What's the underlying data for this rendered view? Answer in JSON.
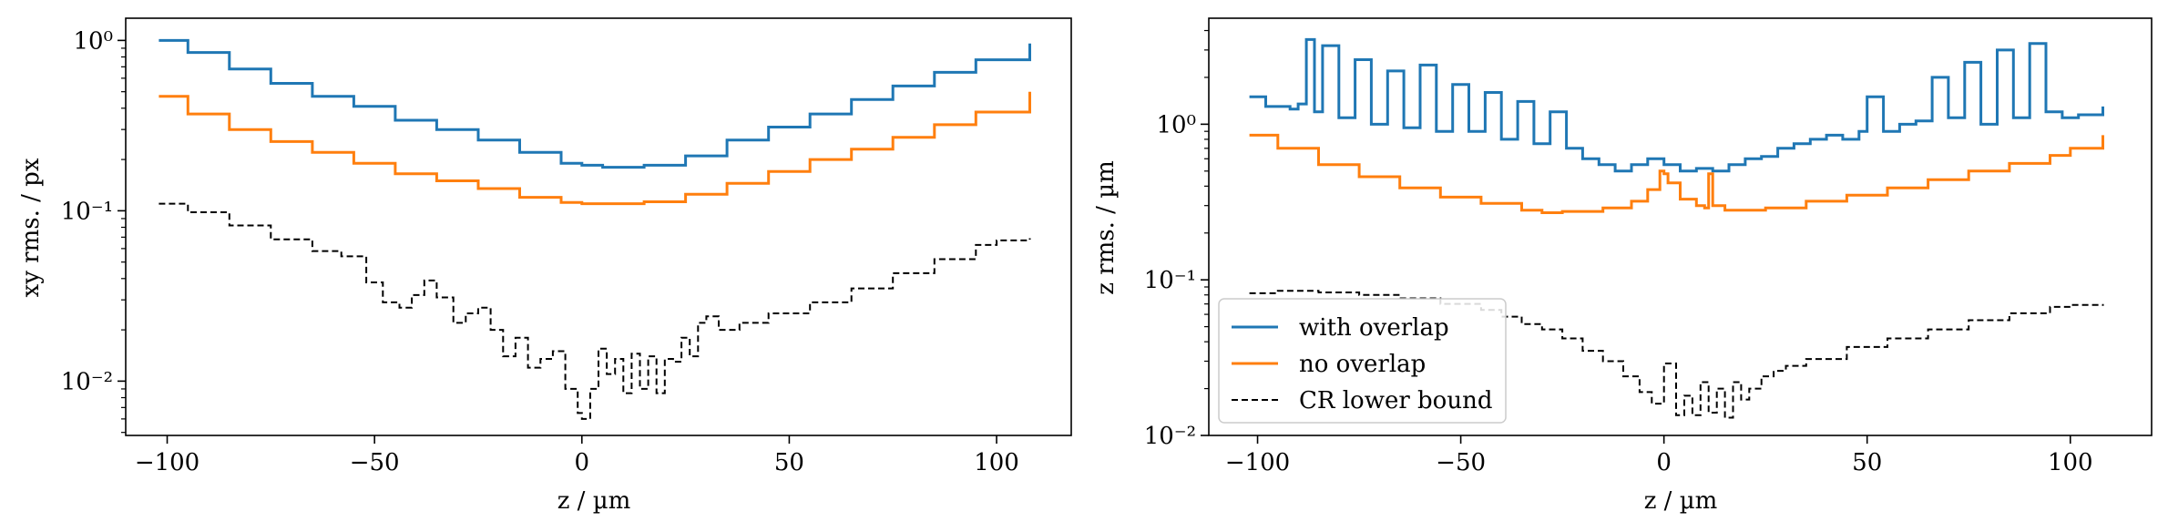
{
  "chart_data": [
    {
      "type": "line",
      "drawstyle": "steps",
      "title": "",
      "xlabel": "z / µm",
      "ylabel": "xy rms. / px",
      "yscale": "log",
      "xlim": [
        -110,
        118
      ],
      "ylim": [
        0.0048,
        1.35
      ],
      "xticks": [
        -100,
        -50,
        0,
        50,
        100
      ],
      "xtick_labels": [
        "−100",
        "−50",
        "0",
        "50",
        "100"
      ],
      "yticks": [
        0.01,
        0.1,
        1
      ],
      "ytick_labels": [
        "10⁻²",
        "10⁻¹",
        "10⁰"
      ],
      "grid": false,
      "series": [
        {
          "color": "#1f77b4",
          "style": "solid",
          "x": [
            -102,
            -95,
            -85,
            -75,
            -65,
            -55,
            -45,
            -35,
            -25,
            -15,
            -5,
            0,
            5,
            15,
            25,
            35,
            45,
            55,
            65,
            75,
            85,
            95,
            108
          ],
          "y": [
            1.0,
            0.85,
            0.68,
            0.56,
            0.47,
            0.41,
            0.34,
            0.3,
            0.26,
            0.22,
            0.19,
            0.185,
            0.18,
            0.185,
            0.21,
            0.26,
            0.31,
            0.37,
            0.45,
            0.54,
            0.65,
            0.77,
            0.96
          ]
        },
        {
          "color": "#ff7f0e",
          "style": "solid",
          "x": [
            -102,
            -95,
            -85,
            -75,
            -65,
            -55,
            -45,
            -35,
            -25,
            -15,
            -5,
            0,
            5,
            15,
            25,
            35,
            45,
            55,
            65,
            75,
            85,
            95,
            108
          ],
          "y": [
            0.47,
            0.37,
            0.3,
            0.255,
            0.22,
            0.19,
            0.165,
            0.15,
            0.135,
            0.12,
            0.112,
            0.11,
            0.11,
            0.113,
            0.125,
            0.145,
            0.17,
            0.2,
            0.23,
            0.27,
            0.32,
            0.38,
            0.5
          ]
        },
        {
          "color": "#000000",
          "style": "dashed",
          "x": [
            -102,
            -95,
            -85,
            -75,
            -65,
            -58,
            -52,
            -48,
            -44,
            -41,
            -38,
            -35,
            -31,
            -28,
            -25,
            -22,
            -19,
            -16,
            -13,
            -10,
            -7,
            -4,
            -1,
            0,
            2,
            4,
            6,
            8,
            10,
            12,
            14,
            16,
            18,
            20,
            22,
            24,
            26,
            28,
            30,
            33,
            38,
            45,
            55,
            65,
            75,
            85,
            95,
            100,
            108
          ],
          "y": [
            0.11,
            0.098,
            0.082,
            0.068,
            0.058,
            0.054,
            0.038,
            0.029,
            0.027,
            0.032,
            0.039,
            0.031,
            0.022,
            0.025,
            0.027,
            0.02,
            0.014,
            0.018,
            0.012,
            0.0135,
            0.015,
            0.009,
            0.0065,
            0.006,
            0.009,
            0.0155,
            0.011,
            0.0135,
            0.0085,
            0.0145,
            0.009,
            0.014,
            0.0085,
            0.0135,
            0.013,
            0.018,
            0.014,
            0.022,
            0.024,
            0.02,
            0.022,
            0.025,
            0.029,
            0.035,
            0.043,
            0.052,
            0.063,
            0.067,
            0.069
          ]
        }
      ]
    },
    {
      "type": "line",
      "drawstyle": "steps",
      "title": "",
      "xlabel": "z / µm",
      "ylabel": "z rms. / µm",
      "yscale": "log",
      "xlim": [
        -112,
        120
      ],
      "ylim": [
        0.01,
        4.8
      ],
      "xticks": [
        -100,
        -50,
        0,
        50,
        100
      ],
      "xtick_labels": [
        "−100",
        "−50",
        "0",
        "50",
        "100"
      ],
      "yticks": [
        0.01,
        0.1,
        1
      ],
      "ytick_labels": [
        "10⁻²",
        "10⁻¹",
        "10⁰"
      ],
      "grid": false,
      "legend": {
        "location": "lower-left",
        "entries": [
          "with overlap",
          "no overlap",
          "CR lower bound"
        ]
      },
      "series": [
        {
          "name": "with overlap",
          "color": "#1f77b4",
          "style": "solid",
          "x": [
            -102,
            -98,
            -92,
            -90,
            -88,
            -86,
            -84,
            -80,
            -76,
            -72,
            -68,
            -64,
            -60,
            -56,
            -52,
            -48,
            -44,
            -40,
            -36,
            -32,
            -28,
            -24,
            -20,
            -16,
            -12,
            -8,
            -4,
            0,
            4,
            8,
            12,
            16,
            20,
            24,
            28,
            32,
            36,
            40,
            44,
            48,
            50,
            54,
            58,
            62,
            66,
            70,
            74,
            78,
            82,
            86,
            90,
            94,
            98,
            102,
            108
          ],
          "y": [
            1.5,
            1.3,
            1.25,
            1.35,
            3.5,
            1.2,
            3.2,
            1.1,
            2.6,
            1.0,
            2.2,
            0.95,
            2.4,
            0.9,
            1.8,
            0.9,
            1.6,
            0.8,
            1.4,
            0.75,
            1.2,
            0.7,
            0.6,
            0.55,
            0.5,
            0.55,
            0.6,
            0.55,
            0.5,
            0.52,
            0.5,
            0.55,
            0.6,
            0.62,
            0.7,
            0.75,
            0.8,
            0.85,
            0.8,
            0.9,
            1.5,
            0.9,
            1.0,
            1.05,
            2.0,
            1.1,
            2.5,
            1.0,
            3.0,
            1.1,
            3.3,
            1.2,
            1.1,
            1.15,
            1.3
          ]
        },
        {
          "name": "no overlap",
          "color": "#ff7f0e",
          "style": "solid",
          "x": [
            -102,
            -95,
            -85,
            -75,
            -65,
            -55,
            -45,
            -35,
            -30,
            -25,
            -15,
            -8,
            -4,
            -1,
            0,
            1,
            4,
            8,
            10,
            11,
            12,
            15,
            20,
            25,
            35,
            45,
            55,
            65,
            75,
            85,
            95,
            100,
            108
          ],
          "y": [
            0.85,
            0.7,
            0.55,
            0.46,
            0.39,
            0.34,
            0.31,
            0.28,
            0.27,
            0.275,
            0.29,
            0.32,
            0.38,
            0.5,
            0.48,
            0.42,
            0.33,
            0.3,
            0.29,
            0.48,
            0.3,
            0.28,
            0.28,
            0.29,
            0.32,
            0.35,
            0.39,
            0.44,
            0.5,
            0.56,
            0.63,
            0.7,
            0.85
          ]
        },
        {
          "name": "CR lower bound",
          "color": "#000000",
          "style": "dashed",
          "x": [
            -102,
            -95,
            -85,
            -75,
            -65,
            -55,
            -45,
            -40,
            -35,
            -30,
            -25,
            -20,
            -15,
            -10,
            -6,
            -3,
            0,
            3,
            5,
            7,
            9,
            11,
            13,
            15,
            17,
            19,
            21,
            24,
            27,
            30,
            35,
            45,
            55,
            65,
            75,
            85,
            95,
            100,
            108
          ],
          "y": [
            0.082,
            0.085,
            0.083,
            0.08,
            0.076,
            0.07,
            0.064,
            0.058,
            0.052,
            0.048,
            0.042,
            0.035,
            0.03,
            0.024,
            0.019,
            0.016,
            0.029,
            0.0135,
            0.018,
            0.0135,
            0.022,
            0.014,
            0.02,
            0.013,
            0.022,
            0.017,
            0.02,
            0.024,
            0.026,
            0.028,
            0.031,
            0.037,
            0.042,
            0.048,
            0.055,
            0.061,
            0.067,
            0.069,
            0.068
          ]
        }
      ]
    }
  ]
}
